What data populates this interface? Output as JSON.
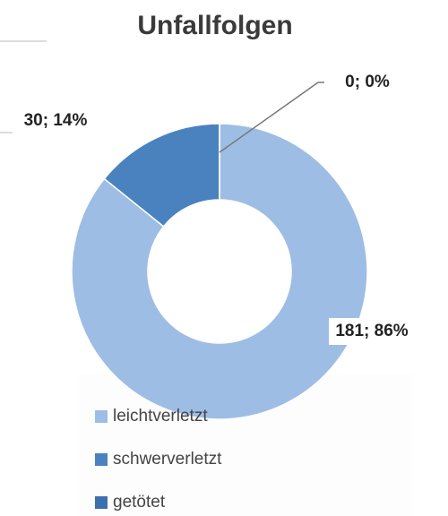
{
  "chart_data": {
    "type": "donut",
    "title": "Unfallfolgen",
    "categories": [
      "leichtverletzt",
      "schwerverletzt",
      "getötet"
    ],
    "values": [
      181,
      30,
      0
    ],
    "value_labels": [
      "181; 86%",
      "30; 14%",
      "0; 0%"
    ],
    "colors": [
      "#9dbde4",
      "#4a82bf",
      "#3b6fae"
    ],
    "legend": "bottom"
  }
}
